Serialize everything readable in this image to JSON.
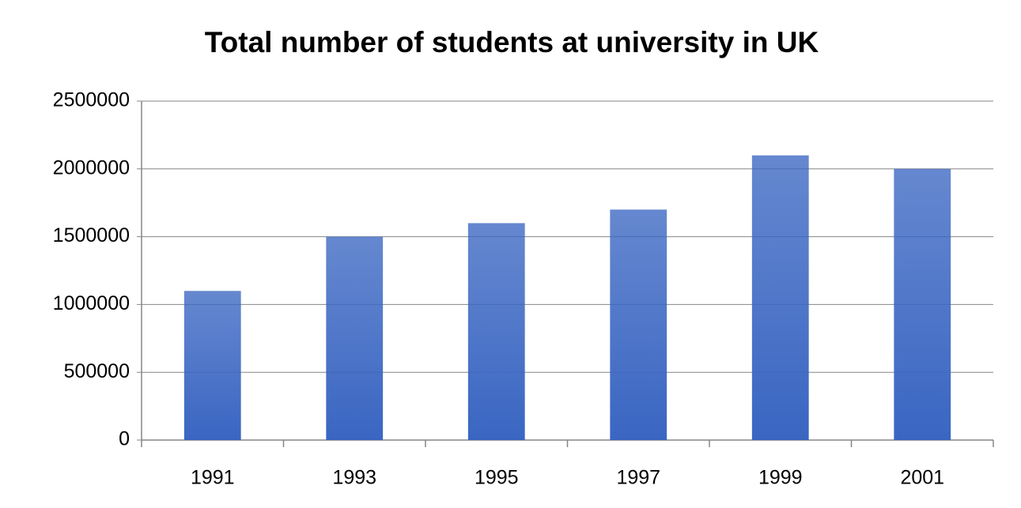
{
  "chart_data": {
    "type": "bar",
    "title": "Total number of students at university in UK",
    "categories": [
      "1991",
      "1993",
      "1995",
      "1997",
      "1999",
      "2001"
    ],
    "values": [
      1100000,
      1500000,
      1600000,
      1700000,
      2100000,
      2000000
    ],
    "color": "#3a66c2",
    "ylim": [
      0,
      2500000
    ],
    "yticks": [
      0,
      500000,
      1000000,
      1500000,
      2000000,
      2500000
    ],
    "grid": true
  }
}
